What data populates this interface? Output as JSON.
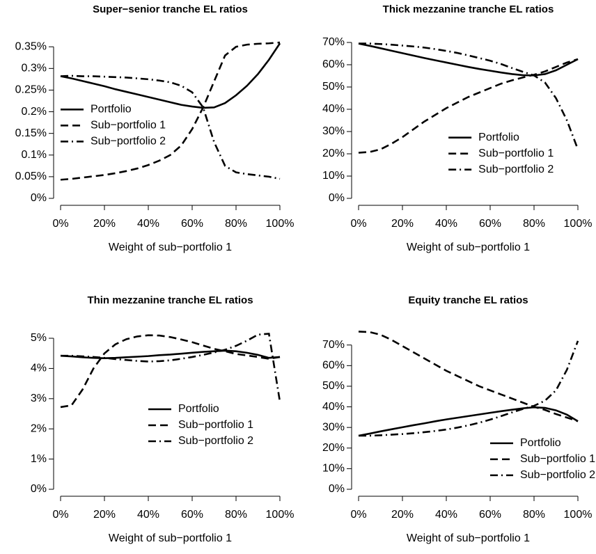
{
  "chart_data": [
    {
      "type": "line",
      "title": "Super−senior tranche EL ratios",
      "xlabel": "Weight of sub−portfolio 1",
      "x": [
        0,
        5,
        10,
        15,
        20,
        25,
        30,
        35,
        40,
        45,
        50,
        55,
        60,
        65,
        70,
        75,
        80,
        85,
        90,
        95,
        100
      ],
      "series": [
        {
          "name": "Portfolio",
          "color": "#000000",
          "dash": "solid",
          "values": [
            0.282,
            0.277,
            0.271,
            0.265,
            0.259,
            0.252,
            0.246,
            0.24,
            0.234,
            0.228,
            0.222,
            0.216,
            0.212,
            0.209,
            0.21,
            0.22,
            0.238,
            0.26,
            0.287,
            0.32,
            0.358
          ]
        },
        {
          "name": "Sub−portfolio 1",
          "color": "#000000",
          "dash": "dashed",
          "values": [
            0.043,
            0.045,
            0.048,
            0.051,
            0.054,
            0.058,
            0.063,
            0.069,
            0.077,
            0.087,
            0.1,
            0.122,
            0.16,
            0.21,
            0.27,
            0.33,
            0.35,
            0.355,
            0.357,
            0.358,
            0.36
          ]
        },
        {
          "name": "Sub−portfolio 2",
          "color": "#000000",
          "dash": "dashdot",
          "values": [
            0.282,
            0.283,
            0.282,
            0.282,
            0.281,
            0.28,
            0.279,
            0.277,
            0.275,
            0.272,
            0.268,
            0.26,
            0.245,
            0.21,
            0.13,
            0.075,
            0.06,
            0.056,
            0.053,
            0.05,
            0.045
          ]
        }
      ],
      "xlim": [
        0,
        100
      ],
      "xticks": [
        {
          "value": 0,
          "label": "0%"
        },
        {
          "value": 20,
          "label": "20%"
        },
        {
          "value": 40,
          "label": "40%"
        },
        {
          "value": 60,
          "label": "60%"
        },
        {
          "value": 80,
          "label": "80%"
        },
        {
          "value": 100,
          "label": "100%"
        }
      ],
      "ylim": [
        0,
        0.36
      ],
      "yticks": [
        {
          "value": 0,
          "label": "0%"
        },
        {
          "value": 0.05,
          "label": "0.05%"
        },
        {
          "value": 0.1,
          "label": "0.1%"
        },
        {
          "value": 0.15,
          "label": "0.15%"
        },
        {
          "value": 0.2,
          "label": "0.2%"
        },
        {
          "value": 0.25,
          "label": "0.25%"
        },
        {
          "value": 0.3,
          "label": "0.3%"
        },
        {
          "value": 0.35,
          "label": "0.35%"
        }
      ],
      "legend": "left",
      "grid": false
    },
    {
      "type": "line",
      "title": "Thick mezzanine tranche EL ratios",
      "xlabel": "Weight of sub−portfolio 1",
      "x": [
        0,
        5,
        10,
        15,
        20,
        25,
        30,
        35,
        40,
        45,
        50,
        55,
        60,
        65,
        70,
        75,
        80,
        85,
        90,
        95,
        100
      ],
      "series": [
        {
          "name": "Portfolio",
          "color": "#000000",
          "dash": "solid",
          "values": [
            69.5,
            68.5,
            67.4,
            66.3,
            65.2,
            64.1,
            63,
            62,
            61,
            60,
            59,
            58.1,
            57.3,
            56.5,
            55.8,
            55.3,
            55.2,
            55.8,
            57.5,
            60,
            62.5
          ]
        },
        {
          "name": "Sub−portfolio 1",
          "color": "#000000",
          "dash": "dashed",
          "values": [
            20.5,
            20.8,
            22,
            24.5,
            27.5,
            31,
            34.5,
            37.5,
            40.5,
            43,
            45.5,
            47.5,
            49.5,
            51.5,
            53,
            54.3,
            55.5,
            57,
            59,
            61,
            62.5
          ]
        },
        {
          "name": "Sub−portfolio 2",
          "color": "#000000",
          "dash": "dashdot",
          "values": [
            69.5,
            69.5,
            69.3,
            69,
            68.6,
            68.2,
            67.7,
            67,
            66.2,
            65.3,
            64.2,
            63,
            61.8,
            60.3,
            58.5,
            56.8,
            55.2,
            52,
            45,
            35,
            22
          ]
        }
      ],
      "xlim": [
        0,
        100
      ],
      "xticks": [
        {
          "value": 0,
          "label": "0%"
        },
        {
          "value": 20,
          "label": "20%"
        },
        {
          "value": 40,
          "label": "40%"
        },
        {
          "value": 60,
          "label": "60%"
        },
        {
          "value": 80,
          "label": "80%"
        },
        {
          "value": 100,
          "label": "100%"
        }
      ],
      "ylim": [
        0,
        70
      ],
      "yticks": [
        {
          "value": 0,
          "label": "0%"
        },
        {
          "value": 10,
          "label": "10%"
        },
        {
          "value": 20,
          "label": "20%"
        },
        {
          "value": 30,
          "label": "30%"
        },
        {
          "value": 40,
          "label": "40%"
        },
        {
          "value": 50,
          "label": "50%"
        },
        {
          "value": 60,
          "label": "60%"
        },
        {
          "value": 70,
          "label": "70%"
        }
      ],
      "legend": "right",
      "grid": false
    },
    {
      "type": "line",
      "title": "Thin mezzanine tranche EL ratios",
      "xlabel": "Weight of sub−portfolio 1",
      "x": [
        0,
        5,
        10,
        15,
        20,
        25,
        30,
        35,
        40,
        45,
        50,
        55,
        60,
        65,
        70,
        75,
        80,
        85,
        90,
        95,
        100
      ],
      "series": [
        {
          "name": "Portfolio",
          "color": "#000000",
          "dash": "solid",
          "values": [
            4.42,
            4.4,
            4.37,
            4.35,
            4.34,
            4.35,
            4.37,
            4.39,
            4.41,
            4.44,
            4.46,
            4.49,
            4.52,
            4.55,
            4.57,
            4.59,
            4.57,
            4.52,
            4.45,
            4.35,
            4.38
          ]
        },
        {
          "name": "Sub−portfolio 1",
          "color": "#000000",
          "dash": "dashed",
          "values": [
            2.72,
            2.78,
            3.3,
            4.0,
            4.5,
            4.8,
            4.97,
            5.06,
            5.1,
            5.09,
            5.04,
            4.96,
            4.87,
            4.76,
            4.65,
            4.57,
            4.48,
            4.43,
            4.38,
            4.32,
            4.38
          ]
        },
        {
          "name": "Sub−portfolio 2",
          "color": "#000000",
          "dash": "dashdot",
          "values": [
            4.42,
            4.42,
            4.4,
            4.38,
            4.35,
            4.31,
            4.28,
            4.25,
            4.23,
            4.24,
            4.27,
            4.32,
            4.38,
            4.45,
            4.53,
            4.62,
            4.75,
            4.92,
            5.12,
            5.15,
            2.9
          ]
        }
      ],
      "xlim": [
        0,
        100
      ],
      "xticks": [
        {
          "value": 0,
          "label": "0%"
        },
        {
          "value": 20,
          "label": "20%"
        },
        {
          "value": 40,
          "label": "40%"
        },
        {
          "value": 60,
          "label": "60%"
        },
        {
          "value": 80,
          "label": "80%"
        },
        {
          "value": 100,
          "label": "100%"
        }
      ],
      "ylim": [
        0,
        5.3
      ],
      "yticks": [
        {
          "value": 0,
          "label": "0%"
        },
        {
          "value": 1,
          "label": "1%"
        },
        {
          "value": 2,
          "label": "2%"
        },
        {
          "value": 3,
          "label": "3%"
        },
        {
          "value": 4,
          "label": "4%"
        },
        {
          "value": 5,
          "label": "5%"
        }
      ],
      "legend": "bottom",
      "grid": false
    },
    {
      "type": "line",
      "title": "Equity tranche EL ratios",
      "xlabel": "Weight of sub−portfolio 1",
      "x": [
        0,
        5,
        10,
        15,
        20,
        25,
        30,
        35,
        40,
        45,
        50,
        55,
        60,
        65,
        70,
        75,
        80,
        85,
        90,
        95,
        100
      ],
      "series": [
        {
          "name": "Portfolio",
          "color": "#000000",
          "dash": "solid",
          "values": [
            26,
            27,
            28.1,
            29.1,
            30.1,
            31.1,
            32,
            33,
            33.9,
            34.7,
            35.5,
            36.3,
            37.1,
            37.9,
            38.6,
            39.3,
            39.8,
            39.5,
            38.3,
            36.2,
            33
          ]
        },
        {
          "name": "Sub−portfolio 1",
          "color": "#000000",
          "dash": "dashed",
          "values": [
            76.5,
            76.3,
            75,
            72.5,
            69.5,
            66.5,
            63.5,
            60.5,
            57.5,
            55,
            52.5,
            50,
            48,
            46,
            44,
            42,
            40,
            38.5,
            36.5,
            34.8,
            33
          ]
        },
        {
          "name": "Sub−portfolio 2",
          "color": "#000000",
          "dash": "dashdot",
          "values": [
            26,
            26,
            26.2,
            26.5,
            26.8,
            27.2,
            27.7,
            28.3,
            29,
            29.9,
            31,
            32.3,
            33.8,
            35.5,
            37.3,
            39,
            40.5,
            43,
            48,
            58,
            72
          ]
        }
      ],
      "xlim": [
        0,
        100
      ],
      "xticks": [
        {
          "value": 0,
          "label": "0%"
        },
        {
          "value": 20,
          "label": "20%"
        },
        {
          "value": 40,
          "label": "40%"
        },
        {
          "value": 60,
          "label": "60%"
        },
        {
          "value": 80,
          "label": "80%"
        },
        {
          "value": 100,
          "label": "100%"
        }
      ],
      "ylim": [
        0,
        77
      ],
      "yticks": [
        {
          "value": 0,
          "label": "0%"
        },
        {
          "value": 10,
          "label": "10%"
        },
        {
          "value": 20,
          "label": "20%"
        },
        {
          "value": 30,
          "label": "30%"
        },
        {
          "value": 40,
          "label": "40%"
        },
        {
          "value": 50,
          "label": "50%"
        },
        {
          "value": 60,
          "label": "60%"
        },
        {
          "value": 70,
          "label": "70%"
        }
      ],
      "legend": "bottomright",
      "grid": false
    }
  ]
}
